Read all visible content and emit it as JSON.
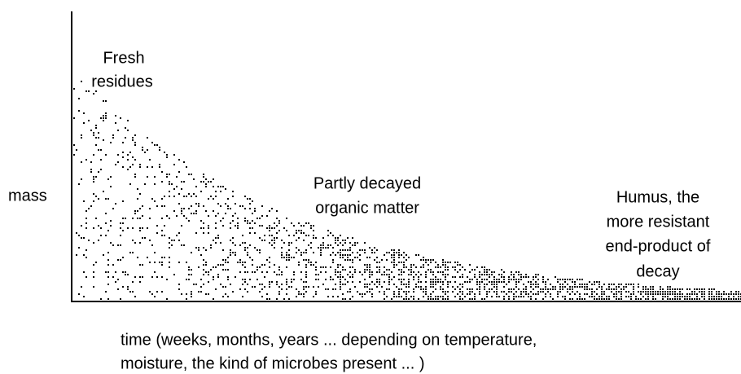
{
  "labels": {
    "fresh": [
      "Fresh",
      "residues"
    ],
    "mass": "mass",
    "partly": [
      "Partly decayed",
      "organic matter"
    ],
    "humus": [
      "Humus, the",
      "more resistant",
      "end-product of",
      "decay"
    ],
    "time": [
      "time (weeks, months, years ... depending on temperature,",
      "moisture, the kind of microbes present ... )"
    ]
  }
}
